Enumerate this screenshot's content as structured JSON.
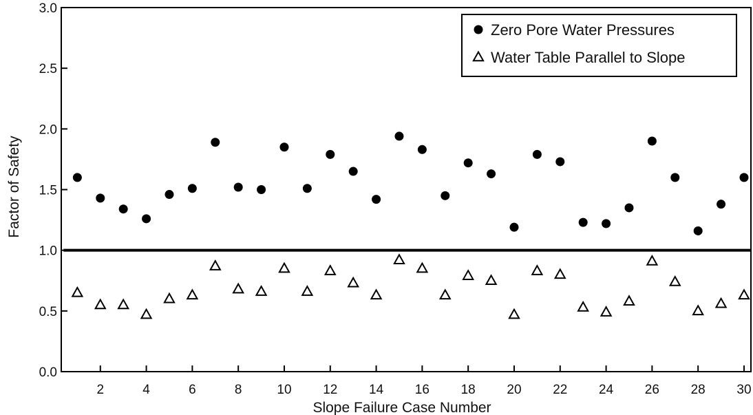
{
  "chart_data": {
    "type": "scatter",
    "title": "",
    "xlabel": "Slope Failure Case Number",
    "ylabel": "Factor of Safety",
    "xlim": [
      0.3,
      30.3
    ],
    "ylim": [
      0.0,
      3.0
    ],
    "x_ticks": [
      2,
      4,
      6,
      8,
      10,
      12,
      14,
      16,
      18,
      20,
      22,
      24,
      26,
      28,
      30
    ],
    "y_ticks": [
      0.0,
      0.5,
      1.0,
      1.5,
      2.0,
      2.5,
      3.0
    ],
    "y_tick_labels": [
      "0.0",
      "0.5",
      "1.0",
      "1.5",
      "2.0",
      "2.5",
      "3.0"
    ],
    "grid": false,
    "legend_position": "top-right",
    "reference_line": {
      "y": 1.0,
      "x_range": [
        0.4,
        30.3
      ]
    },
    "x": [
      1,
      2,
      3,
      4,
      5,
      6,
      7,
      8,
      9,
      10,
      11,
      12,
      13,
      14,
      15,
      16,
      17,
      18,
      19,
      20,
      21,
      22,
      23,
      24,
      25,
      26,
      27,
      28,
      29,
      30
    ],
    "series": [
      {
        "name": "Zero Pore Water Pressures",
        "marker": "filled-circle",
        "color": "#000000",
        "values": [
          1.6,
          1.43,
          1.34,
          1.26,
          1.46,
          1.51,
          1.89,
          1.52,
          1.5,
          1.85,
          1.51,
          1.79,
          1.65,
          1.42,
          1.94,
          1.83,
          1.45,
          1.72,
          1.63,
          1.19,
          1.79,
          1.73,
          1.23,
          1.22,
          1.35,
          1.9,
          1.6,
          1.16,
          1.38,
          1.6
        ]
      },
      {
        "name": "Water Table Parallel to Slope",
        "marker": "open-triangle",
        "color": "#000000",
        "values": [
          0.65,
          0.55,
          0.55,
          0.47,
          0.6,
          0.63,
          0.87,
          0.68,
          0.66,
          0.85,
          0.66,
          0.83,
          0.73,
          0.63,
          0.92,
          0.85,
          0.63,
          0.79,
          0.75,
          0.47,
          0.83,
          0.8,
          0.53,
          0.49,
          0.58,
          0.91,
          0.74,
          0.5,
          0.56,
          0.63
        ]
      }
    ]
  }
}
